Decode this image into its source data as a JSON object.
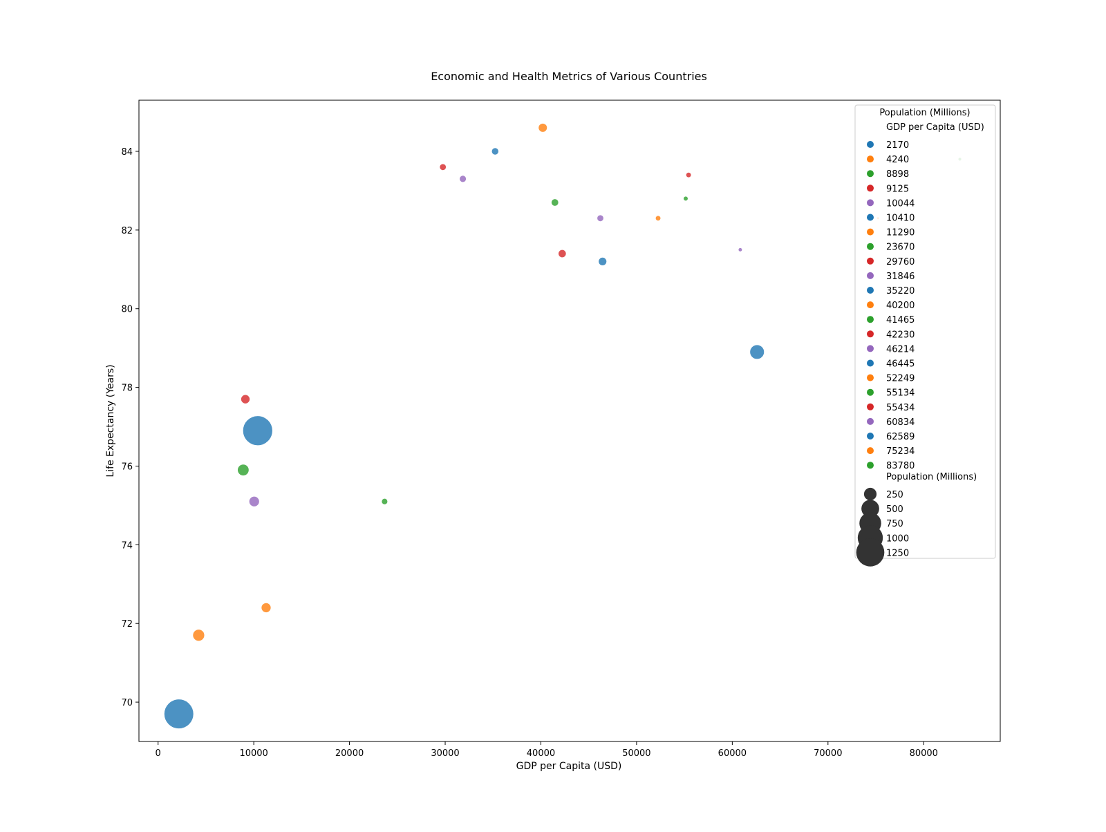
{
  "chart_data": {
    "type": "scatter",
    "title": "Economic and Health Metrics of Various Countries",
    "xlabel": "GDP per Capita (USD)",
    "ylabel": "Life Expectancy (Years)",
    "xlim": [
      -2000,
      88000
    ],
    "ylim": [
      69.0,
      85.3
    ],
    "xticks": [
      0,
      10000,
      20000,
      30000,
      40000,
      50000,
      60000,
      70000,
      80000
    ],
    "yticks": [
      70,
      72,
      74,
      76,
      78,
      80,
      82,
      84
    ],
    "grid": false,
    "legend_position": "top-right",
    "legend_title": "Population (Millions)",
    "hue_title": "GDP per Capita (USD)",
    "size_title": "Population (Millions)",
    "palette": [
      "#1f77b4",
      "#ff7f0e",
      "#2ca02c",
      "#d62728",
      "#9467bd"
    ],
    "points": [
      {
        "x": 2170,
        "y": 69.7,
        "size": 1380,
        "color": "#1f77b4"
      },
      {
        "x": 4240,
        "y": 71.7,
        "size": 220,
        "color": "#ff7f0e"
      },
      {
        "x": 8898,
        "y": 75.9,
        "size": 210,
        "color": "#2ca02c"
      },
      {
        "x": 9125,
        "y": 77.7,
        "size": 130,
        "color": "#d62728"
      },
      {
        "x": 10044,
        "y": 75.1,
        "size": 170,
        "color": "#9467bd"
      },
      {
        "x": 10410,
        "y": 76.9,
        "size": 1400,
        "color": "#1f77b4"
      },
      {
        "x": 11290,
        "y": 72.4,
        "size": 150,
        "color": "#ff7f0e"
      },
      {
        "x": 23670,
        "y": 75.1,
        "size": 60,
        "color": "#2ca02c"
      },
      {
        "x": 29760,
        "y": 83.6,
        "size": 70,
        "color": "#d62728"
      },
      {
        "x": 31846,
        "y": 83.3,
        "size": 75,
        "color": "#9467bd"
      },
      {
        "x": 35220,
        "y": 84.0,
        "size": 80,
        "color": "#1f77b4"
      },
      {
        "x": 40200,
        "y": 84.6,
        "size": 125,
        "color": "#ff7f0e"
      },
      {
        "x": 41465,
        "y": 82.7,
        "size": 85,
        "color": "#2ca02c"
      },
      {
        "x": 42230,
        "y": 81.4,
        "size": 100,
        "color": "#d62728"
      },
      {
        "x": 46214,
        "y": 82.3,
        "size": 70,
        "color": "#9467bd"
      },
      {
        "x": 46445,
        "y": 81.2,
        "size": 110,
        "color": "#1f77b4"
      },
      {
        "x": 52249,
        "y": 82.3,
        "size": 45,
        "color": "#ff7f0e"
      },
      {
        "x": 55134,
        "y": 82.8,
        "size": 35,
        "color": "#2ca02c"
      },
      {
        "x": 55434,
        "y": 83.4,
        "size": 45,
        "color": "#d62728"
      },
      {
        "x": 60834,
        "y": 81.5,
        "size": 25,
        "color": "#9467bd"
      },
      {
        "x": 62589,
        "y": 78.9,
        "size": 330,
        "color": "#1f77b4"
      },
      {
        "x": 75234,
        "y": 82.3,
        "size": 12,
        "color": "#ff7f0e"
      },
      {
        "x": 83780,
        "y": 83.8,
        "size": 18,
        "color": "#2ca02c"
      }
    ],
    "hue_legend": [
      {
        "label": "2170",
        "color": "#1f77b4"
      },
      {
        "label": "4240",
        "color": "#ff7f0e"
      },
      {
        "label": "8898",
        "color": "#2ca02c"
      },
      {
        "label": "9125",
        "color": "#d62728"
      },
      {
        "label": "10044",
        "color": "#9467bd"
      },
      {
        "label": "10410",
        "color": "#1f77b4"
      },
      {
        "label": "11290",
        "color": "#ff7f0e"
      },
      {
        "label": "23670",
        "color": "#2ca02c"
      },
      {
        "label": "29760",
        "color": "#d62728"
      },
      {
        "label": "31846",
        "color": "#9467bd"
      },
      {
        "label": "35220",
        "color": "#1f77b4"
      },
      {
        "label": "40200",
        "color": "#ff7f0e"
      },
      {
        "label": "41465",
        "color": "#2ca02c"
      },
      {
        "label": "42230",
        "color": "#d62728"
      },
      {
        "label": "46214",
        "color": "#9467bd"
      },
      {
        "label": "46445",
        "color": "#1f77b4"
      },
      {
        "label": "52249",
        "color": "#ff7f0e"
      },
      {
        "label": "55134",
        "color": "#2ca02c"
      },
      {
        "label": "55434",
        "color": "#d62728"
      },
      {
        "label": "60834",
        "color": "#9467bd"
      },
      {
        "label": "62589",
        "color": "#1f77b4"
      },
      {
        "label": "75234",
        "color": "#ff7f0e"
      },
      {
        "label": "83780",
        "color": "#2ca02c"
      }
    ],
    "size_legend": [
      {
        "label": "250",
        "value": 250
      },
      {
        "label": "500",
        "value": 500
      },
      {
        "label": "750",
        "value": 750
      },
      {
        "label": "1000",
        "value": 1000
      },
      {
        "label": "1250",
        "value": 1250
      }
    ]
  }
}
